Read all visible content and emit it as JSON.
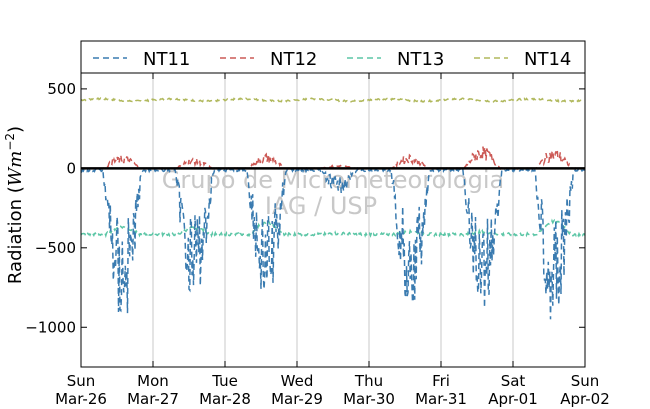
{
  "chart_data": {
    "type": "line",
    "ylabel": "Radiation (W m⁻²)",
    "ylim": [
      -1250,
      600
    ],
    "xlim": [
      0,
      7
    ],
    "yticks": [
      500,
      0,
      -500,
      -1000
    ],
    "ytick_labels": [
      "500",
      "0",
      "−500",
      "−1000"
    ],
    "xticks": [
      {
        "day": "Sun",
        "date": "Mar-26"
      },
      {
        "day": "Mon",
        "date": "Mar-27"
      },
      {
        "day": "Tue",
        "date": "Mar-28"
      },
      {
        "day": "Wed",
        "date": "Mar-29"
      },
      {
        "day": "Thu",
        "date": "Mar-30"
      },
      {
        "day": "Fri",
        "date": "Mar-31"
      },
      {
        "day": "Sat",
        "date": "Apr-01"
      },
      {
        "day": "Sun",
        "date": "Apr-02"
      }
    ],
    "grid": "vertical",
    "legend": "top-outside",
    "watermark": [
      "Grupo de Micrometeorologia",
      "IAG / USP"
    ],
    "series": [
      {
        "name": "NT11",
        "color": "#3a7bb0",
        "daily_min": [
          -1010,
          -850,
          -920,
          -160,
          -950,
          -980,
          -1020
        ],
        "baseline": -5
      },
      {
        "name": "NT12",
        "color": "#cc5a56",
        "daily_max": [
          85,
          65,
          95,
          20,
          90,
          140,
          125
        ],
        "baseline": 0
      },
      {
        "name": "NT13",
        "color": "#5cc6a6",
        "mean": -415,
        "daily_bump": [
          -370,
          -375,
          -345,
          -410,
          -400,
          -400,
          -335
        ]
      },
      {
        "name": "NT14",
        "color": "#b0b85c",
        "mean": 430
      }
    ]
  }
}
